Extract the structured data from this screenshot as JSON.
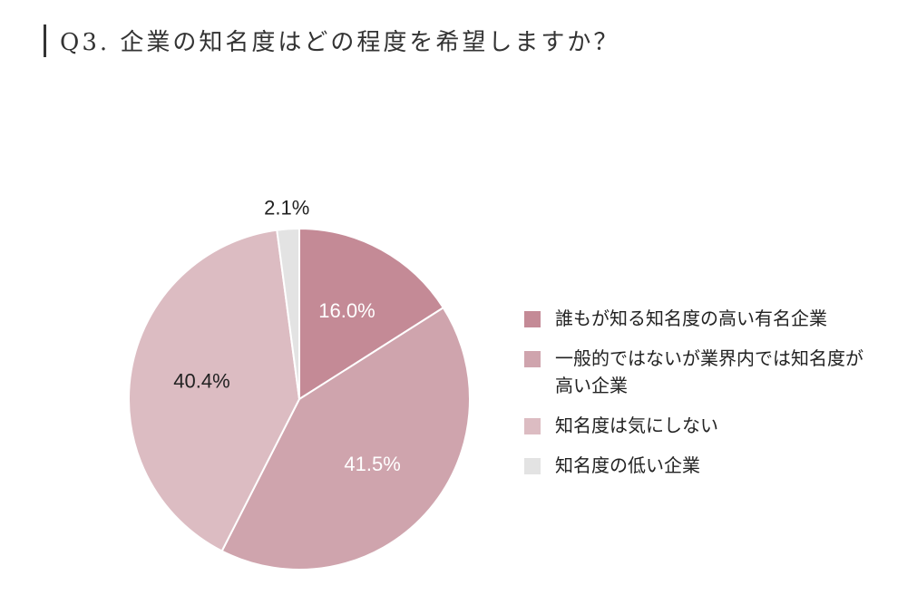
{
  "title": "Q3. 企業の知名度はどの程度を希望しますか？",
  "chart_data": {
    "type": "pie",
    "start_angle_deg": 0,
    "direction": "clockwise",
    "slices": [
      {
        "label": "誰もが知る知名度の高い有名企業",
        "value": 16.0,
        "display": "16.0%",
        "color": "#c48a96",
        "label_color": "#ffffff"
      },
      {
        "label": "一般的ではないが業界内では知名度が高い企業",
        "value": 41.5,
        "display": "41.5%",
        "color": "#cfa4ad",
        "label_color": "#ffffff"
      },
      {
        "label": "知名度は気にしない",
        "value": 40.4,
        "display": "40.4%",
        "color": "#dcbcc2",
        "label_color": "#222222"
      },
      {
        "label": "知名度の低い企業",
        "value": 2.1,
        "display": "2.1%",
        "color": "#e3e3e3",
        "label_color": "#222222",
        "label_outside": true
      }
    ]
  }
}
